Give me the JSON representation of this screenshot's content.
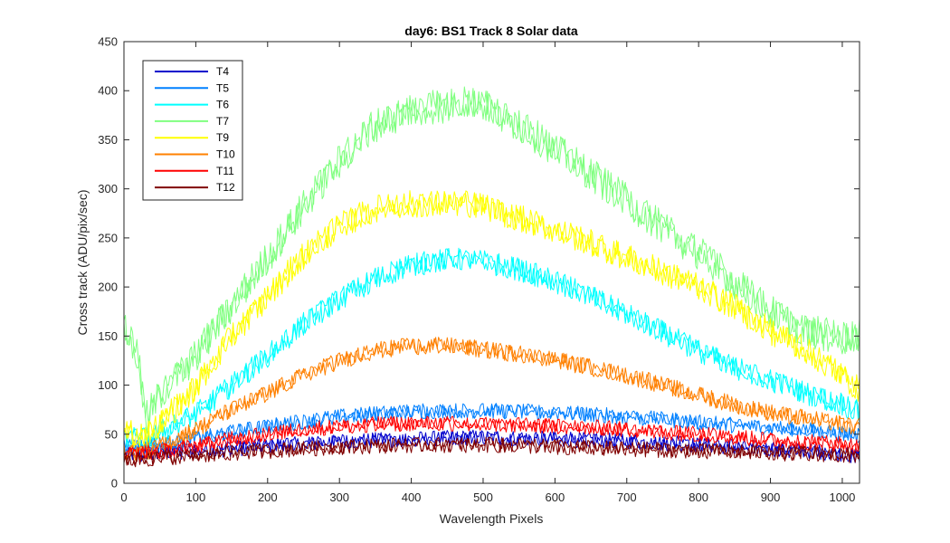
{
  "chart_data": {
    "type": "line",
    "title": "day6: BS1  Track 8 Solar data",
    "xlabel": "Wavelength Pixels",
    "ylabel": "Cross track (ADU/pix/sec)",
    "xlim": [
      0,
      1024
    ],
    "ylim": [
      0,
      450
    ],
    "xticks": [
      0,
      100,
      200,
      300,
      400,
      500,
      600,
      700,
      800,
      900,
      1000
    ],
    "yticks": [
      0,
      50,
      100,
      150,
      200,
      250,
      300,
      350,
      400,
      450
    ],
    "grid": false,
    "legend_position": "top-left",
    "x": [
      0,
      10,
      20,
      30,
      50,
      100,
      150,
      200,
      250,
      300,
      350,
      400,
      450,
      480,
      500,
      550,
      600,
      650,
      700,
      750,
      800,
      850,
      900,
      950,
      1000,
      1024
    ],
    "series": [
      {
        "name": "T4",
        "color": "#0000cc",
        "values": [
          28,
          29,
          30,
          30,
          31,
          33,
          35,
          38,
          40,
          42,
          44,
          45,
          46,
          47,
          47,
          46,
          45,
          44,
          43,
          41,
          39,
          37,
          35,
          33,
          30,
          28
        ]
      },
      {
        "name": "T5",
        "color": "#0080ff",
        "values": [
          38,
          38,
          38,
          38,
          40,
          45,
          52,
          58,
          63,
          68,
          71,
          73,
          74,
          74,
          74,
          73,
          72,
          70,
          68,
          65,
          62,
          59,
          57,
          55,
          50,
          48
        ]
      },
      {
        "name": "T6",
        "color": "#00ffff",
        "values": [
          45,
          45,
          45,
          45,
          52,
          70,
          100,
          130,
          162,
          188,
          208,
          222,
          228,
          228,
          226,
          218,
          206,
          190,
          172,
          154,
          135,
          118,
          105,
          92,
          80,
          72
        ]
      },
      {
        "name": "T7",
        "color": "#80ff80",
        "values": [
          155,
          148,
          125,
          65,
          90,
          130,
          180,
          230,
          282,
          328,
          365,
          380,
          385,
          390,
          385,
          365,
          340,
          315,
          288,
          260,
          235,
          205,
          175,
          155,
          148,
          152
        ]
      },
      {
        "name": "T9",
        "color": "#ffff00",
        "values": [
          50,
          50,
          50,
          50,
          60,
          98,
          150,
          190,
          232,
          262,
          280,
          285,
          285,
          285,
          282,
          270,
          258,
          245,
          230,
          215,
          200,
          180,
          155,
          135,
          110,
          95
        ]
      },
      {
        "name": "T10",
        "color": "#ff8000",
        "values": [
          32,
          32,
          32,
          32,
          38,
          55,
          75,
          92,
          110,
          125,
          135,
          140,
          140,
          138,
          136,
          132,
          126,
          118,
          110,
          100,
          90,
          80,
          72,
          66,
          60,
          58
        ]
      },
      {
        "name": "T11",
        "color": "#ff0000",
        "values": [
          30,
          30,
          30,
          31,
          32,
          38,
          45,
          50,
          55,
          58,
          60,
          61,
          61,
          60,
          60,
          59,
          58,
          57,
          55,
          52,
          50,
          47,
          44,
          42,
          40,
          38
        ]
      },
      {
        "name": "T12",
        "color": "#800000",
        "values": [
          24,
          24,
          24,
          24,
          26,
          28,
          31,
          33,
          35,
          37,
          38,
          39,
          39,
          39,
          39,
          38,
          37,
          36,
          35,
          34,
          33,
          32,
          31,
          30,
          29,
          28
        ]
      }
    ]
  }
}
